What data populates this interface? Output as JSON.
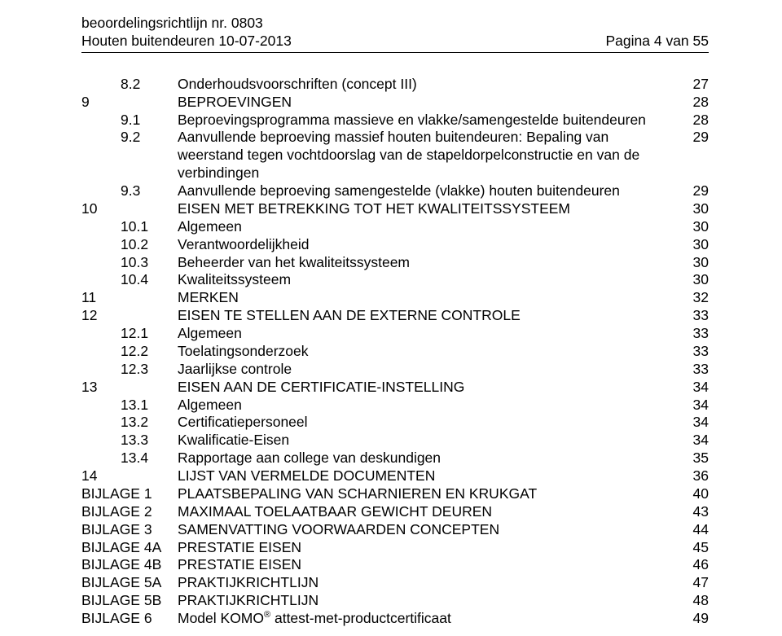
{
  "header": {
    "line1_left": "beoordelingsrichtlijn nr. 0803",
    "line2_left": "Houten buitendeuren 10-07-2013",
    "line2_right": "Pagina 4 van 55"
  },
  "toc": [
    {
      "layout": "sub",
      "num": "",
      "sub": "8.2",
      "title": "Onderhoudsvoorschriften (concept III)",
      "page": "27"
    },
    {
      "layout": "top",
      "num": "9",
      "sub": "",
      "title": "BEPROEVINGEN",
      "page": "28"
    },
    {
      "layout": "sub",
      "num": "",
      "sub": "9.1",
      "title": "Beproevingsprogramma massieve en vlakke/samengestelde buitendeuren",
      "page": "28"
    },
    {
      "layout": "sub",
      "num": "",
      "sub": "9.2",
      "title": "Aanvullende beproeving massief houten buitendeuren: Bepaling van weerstand tegen vochtdoorslag van de stapeldorpelconstructie en van de verbindingen",
      "page": "29"
    },
    {
      "layout": "sub",
      "num": "",
      "sub": "9.3",
      "title": "Aanvullende beproeving samengestelde (vlakke) houten buitendeuren",
      "page": "29"
    },
    {
      "layout": "top",
      "num": "10",
      "sub": "",
      "title": "EISEN MET BETREKKING TOT HET KWALITEITSSYSTEEM",
      "page": "30"
    },
    {
      "layout": "sub",
      "num": "",
      "sub": "10.1",
      "title": "Algemeen",
      "page": "30"
    },
    {
      "layout": "sub",
      "num": "",
      "sub": "10.2",
      "title": "Verantwoordelijkheid",
      "page": "30"
    },
    {
      "layout": "sub",
      "num": "",
      "sub": "10.3",
      "title": "Beheerder van het kwaliteitssysteem",
      "page": "30"
    },
    {
      "layout": "sub",
      "num": "",
      "sub": "10.4",
      "title": "Kwaliteitssysteem",
      "page": "30"
    },
    {
      "layout": "top",
      "num": "11",
      "sub": "",
      "title": "MERKEN",
      "page": "32"
    },
    {
      "layout": "top",
      "num": "12",
      "sub": "",
      "title": "EISEN TE STELLEN AAN DE EXTERNE CONTROLE",
      "page": "33"
    },
    {
      "layout": "sub",
      "num": "",
      "sub": "12.1",
      "title": "Algemeen",
      "page": "33"
    },
    {
      "layout": "sub",
      "num": "",
      "sub": "12.2",
      "title": "Toelatingsonderzoek",
      "page": "33"
    },
    {
      "layout": "sub",
      "num": "",
      "sub": "12.3",
      "title": "Jaarlijkse controle",
      "page": "33"
    },
    {
      "layout": "top",
      "num": "13",
      "sub": "",
      "title": "EISEN AAN DE CERTIFICATIE-INSTELLING",
      "page": "34"
    },
    {
      "layout": "sub",
      "num": "",
      "sub": "13.1",
      "title": "Algemeen",
      "page": "34"
    },
    {
      "layout": "sub",
      "num": "",
      "sub": "13.2",
      "title": "Certificatiepersoneel",
      "page": "34"
    },
    {
      "layout": "sub",
      "num": "",
      "sub": "13.3",
      "title": "Kwalificatie-Eisen",
      "page": "34"
    },
    {
      "layout": "sub",
      "num": "",
      "sub": "13.4",
      "title": "Rapportage aan college van deskundigen",
      "page": "35"
    },
    {
      "layout": "top",
      "num": "14",
      "sub": "",
      "title": "LIJST VAN VERMELDE DOCUMENTEN",
      "page": "36"
    },
    {
      "layout": "bijlage",
      "label": "BIJLAGE 1",
      "title": "PLAATSBEPALING VAN SCHARNIEREN EN KRUKGAT",
      "page": "40"
    },
    {
      "layout": "bijlage",
      "label": "BIJLAGE 2",
      "title": "MAXIMAAL TOELAATBAAR GEWICHT DEUREN",
      "page": "43"
    },
    {
      "layout": "bijlage",
      "label": "BIJLAGE 3",
      "title": "SAMENVATTING VOORWAARDEN CONCEPTEN",
      "page": "44"
    },
    {
      "layout": "bijlage",
      "label": "BIJLAGE 4A",
      "title": "PRESTATIE EISEN",
      "page": "45"
    },
    {
      "layout": "bijlage",
      "label": "BIJLAGE 4B",
      "title": "PRESTATIE EISEN",
      "page": "46"
    },
    {
      "layout": "bijlage",
      "label": "BIJLAGE 5A",
      "title": "PRAKTIJKRICHTLIJN",
      "page": "47"
    },
    {
      "layout": "bijlage",
      "label": "BIJLAGE 5B",
      "title": "PRAKTIJKRICHTLIJN",
      "page": "48"
    },
    {
      "layout": "bijlage-komo",
      "label": "BIJLAGE 6",
      "title_pre": "Model KOMO",
      "title_sup": "®",
      "title_post": " attest-met-productcertificaat",
      "page": "49"
    }
  ]
}
